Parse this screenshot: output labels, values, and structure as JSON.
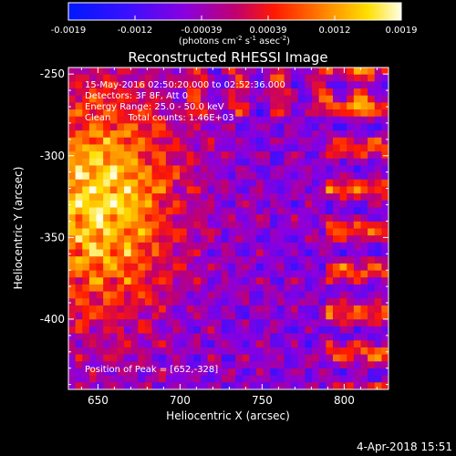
{
  "colorbar": {
    "ticks": [
      "-0.0019",
      "-0.0012",
      "-0.00039",
      "0.00039",
      "0.0012",
      "0.0019"
    ],
    "unit_label_parts": [
      "(photons cm",
      "-2",
      " s",
      "-1",
      " asec",
      "-2",
      ")"
    ],
    "min": -0.0019,
    "max": 0.0019
  },
  "image": {
    "title": "Reconstructed RHESSI Image",
    "info_lines": [
      "15-May-2016 02:50:20.000 to 02:52:36.000",
      "Detectors: 3F 8F, Att 0",
      "Energy Range: 25.0 - 50.0 keV",
      "Clean      Total counts: 1.46E+03"
    ],
    "peak_label": "Position of Peak = [652,-328]",
    "timestamp": "4-Apr-2018 15:51"
  },
  "chart_data": {
    "type": "heatmap",
    "title": "Reconstructed RHESSI Image",
    "xlabel": "Heliocentric X (arcsec)",
    "ylabel": "Heliocentric Y (arcsec)",
    "xlim": [
      632,
      827
    ],
    "ylim": [
      -443,
      -246
    ],
    "x_ticks": [
      650,
      700,
      750,
      800
    ],
    "x_tick_labels": [
      "650",
      "700",
      "750",
      "800"
    ],
    "y_ticks": [
      -250,
      -300,
      -350,
      -400
    ],
    "y_tick_labels": [
      "-250",
      "-300",
      "-350",
      "-400"
    ],
    "colormap": "blue-purple-red-yellow-white",
    "value_range": [
      -0.0019,
      0.0019
    ],
    "peak": {
      "x": 652,
      "y": -328
    },
    "grid": false
  }
}
